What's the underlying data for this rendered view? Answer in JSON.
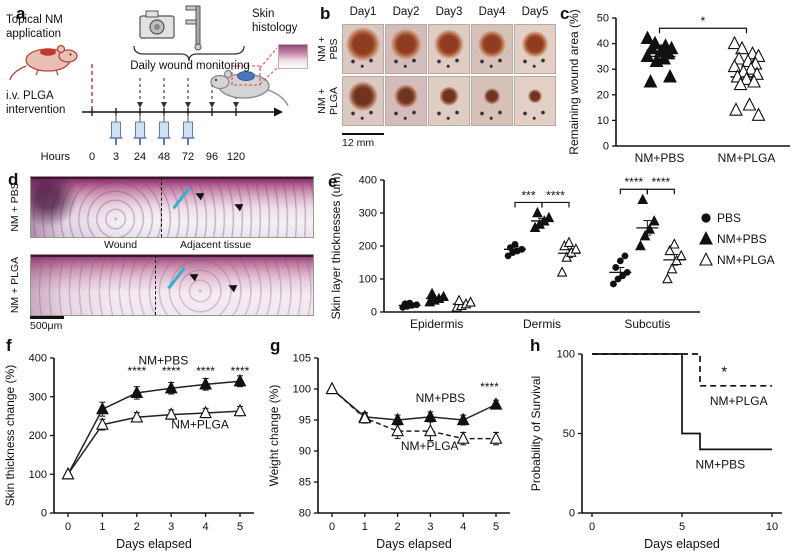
{
  "panels": {
    "a": {
      "label": "a"
    },
    "b": {
      "label": "b"
    },
    "c": {
      "label": "c"
    },
    "d": {
      "label": "d"
    },
    "e": {
      "label": "e"
    },
    "f": {
      "label": "f"
    },
    "g": {
      "label": "g"
    },
    "h": {
      "label": "h"
    }
  },
  "panel_a": {
    "topical_label": "Topical NM application",
    "iv_label": "i.v. PLGA intervention",
    "monitoring_label": "Daily wound monitoring",
    "histology_label": "Skin histology",
    "hours_label": "Hours",
    "hours": [
      "0",
      "3",
      "24",
      "48",
      "72",
      "96",
      "120"
    ]
  },
  "panel_b": {
    "day_labels": [
      "Day1",
      "Day2",
      "Day3",
      "Day4",
      "Day5"
    ],
    "rows": [
      {
        "label_lines": [
          "NM +",
          "PBS"
        ],
        "wound_sizes": [
          0.58,
          0.52,
          0.5,
          0.47,
          0.45
        ]
      },
      {
        "label_lines": [
          "NM +",
          "PLGA"
        ],
        "wound_sizes": [
          0.5,
          0.4,
          0.33,
          0.28,
          0.24
        ]
      }
    ],
    "scale_label": "12 mm"
  },
  "panel_d": {
    "row_labels": [
      "NM + PBS",
      "NM + PLGA"
    ],
    "wound_label": "Wound",
    "adjacent_label": "Adjacent tissue",
    "scale_label": "500μm"
  },
  "chart_data": [
    {
      "panel": "c",
      "type": "scatter",
      "ylabel": "Remaining wound area (%)",
      "ylim": [
        0,
        50
      ],
      "yticks": [
        0,
        10,
        20,
        30,
        40,
        50
      ],
      "categories": [
        "NM+PBS",
        "NM+PLGA"
      ],
      "groups": [
        {
          "name": "NM+PBS",
          "marker": "triangle-filled",
          "values": [
            42,
            40,
            39,
            38,
            38,
            37,
            36,
            35,
            34,
            33,
            27,
            25
          ],
          "mean": 35,
          "sem": 1.5
        },
        {
          "name": "NM+PLGA",
          "marker": "triangle-open",
          "values": [
            40,
            38,
            36,
            35,
            34,
            33,
            32,
            31,
            30,
            29,
            28,
            27,
            26,
            25,
            24,
            16,
            14,
            12
          ],
          "mean": 27,
          "sem": 2
        }
      ],
      "significance": [
        {
          "pair": [
            0,
            1
          ],
          "y": 46,
          "label": "*"
        }
      ]
    },
    {
      "panel": "e",
      "type": "grouped-scatter",
      "ylabel": "Skin layer thicknesses (um)",
      "ylim": [
        0,
        400
      ],
      "yticks": [
        0,
        100,
        200,
        300,
        400
      ],
      "categories": [
        "Epidermis",
        "Dermis",
        "Subcutis"
      ],
      "series": [
        {
          "name": "PBS",
          "marker": "circle-filled",
          "points": [
            [
              14,
              17,
              20,
              22,
              25,
              27
            ],
            [
              170,
              180,
              185,
              190,
              195,
              205
            ],
            [
              85,
              100,
              110,
              120,
              135,
              155,
              170
            ]
          ],
          "means": [
            20,
            190,
            120
          ],
          "sems": [
            3,
            8,
            15
          ]
        },
        {
          "name": "NM+PBS",
          "marker": "triangle-filled",
          "points": [
            [
              30,
              35,
              40,
              46,
              55
            ],
            [
              255,
              265,
              275,
              285,
              300
            ],
            [
              200,
              230,
              250,
              275,
              340
            ]
          ],
          "means": [
            41,
            276,
            255
          ],
          "sems": [
            4,
            8,
            22
          ]
        },
        {
          "name": "NM+PLGA",
          "marker": "triangle-open",
          "points": [
            [
              14,
              19,
              24,
              29,
              34
            ],
            [
              120,
              165,
              180,
              190,
              200,
              210
            ],
            [
              100,
              130,
              155,
              170,
              185,
              205
            ]
          ],
          "means": [
            24,
            178,
            158
          ],
          "sems": [
            4,
            13,
            16
          ]
        }
      ],
      "legend_position": "right",
      "significance": [
        {
          "cat": 1,
          "pair": [
            0,
            1
          ],
          "y": 332,
          "label": "***"
        },
        {
          "cat": 1,
          "pair": [
            1,
            2
          ],
          "y": 332,
          "label": "****"
        },
        {
          "cat": 2,
          "pair": [
            0,
            1
          ],
          "y": 372,
          "label": "****"
        },
        {
          "cat": 2,
          "pair": [
            1,
            2
          ],
          "y": 372,
          "label": "****"
        }
      ]
    },
    {
      "panel": "f",
      "type": "line",
      "xlabel": "Days elapsed",
      "ylabel": "Skin thickness change (%)",
      "ylim": [
        0,
        400
      ],
      "yticks": [
        0,
        100,
        200,
        300,
        400
      ],
      "xlim": [
        0,
        5
      ],
      "xticks": [
        0,
        1,
        2,
        3,
        4,
        5
      ],
      "x": [
        0,
        1,
        2,
        3,
        4,
        5
      ],
      "series": [
        {
          "name": "NM+PBS",
          "marker": "triangle-filled",
          "line": "solid",
          "values": [
            100,
            268,
            310,
            322,
            332,
            340
          ],
          "errors": [
            0,
            18,
            16,
            15,
            15,
            14
          ],
          "label_pos": [
            2.05,
            383
          ]
        },
        {
          "name": "NM+PLGA",
          "marker": "triangle-open",
          "line": "solid",
          "values": [
            100,
            228,
            247,
            254,
            258,
            263
          ],
          "errors": [
            0,
            14,
            12,
            12,
            12,
            12
          ],
          "label_pos": [
            3.0,
            218
          ]
        }
      ],
      "annotations": [
        {
          "x": 2,
          "y": 356,
          "label": "****"
        },
        {
          "x": 3,
          "y": 356,
          "label": "****"
        },
        {
          "x": 4,
          "y": 356,
          "label": "****"
        },
        {
          "x": 5,
          "y": 356,
          "label": "****"
        }
      ]
    },
    {
      "panel": "g",
      "type": "line",
      "xlabel": "Days elapsed",
      "ylabel": "Weight change (%)",
      "ylim": [
        80,
        105
      ],
      "yticks": [
        80,
        85,
        90,
        95,
        100,
        105
      ],
      "xlim": [
        0,
        5
      ],
      "xticks": [
        0,
        1,
        2,
        3,
        4,
        5
      ],
      "x": [
        0,
        1,
        2,
        3,
        4,
        5
      ],
      "series": [
        {
          "name": "NM+PBS",
          "marker": "triangle-filled",
          "line": "solid",
          "values": [
            100,
            95.5,
            95,
            95.5,
            95,
            97.5
          ],
          "errors": [
            0,
            0.7,
            0.8,
            0.8,
            0.8,
            0.7
          ],
          "label_pos": [
            2.55,
            97.9
          ]
        },
        {
          "name": "NM+PLGA",
          "marker": "triangle-open",
          "line": "dashed",
          "values": [
            100,
            95.3,
            93.2,
            93.2,
            92,
            92
          ],
          "errors": [
            0,
            0.8,
            1.2,
            1.5,
            1,
            1
          ],
          "label_pos": [
            2.1,
            90.2
          ]
        }
      ],
      "annotations": [
        {
          "x": 4.8,
          "y": 99.7,
          "label": "****"
        }
      ]
    },
    {
      "panel": "h",
      "type": "survival",
      "xlabel": "Days elapsed",
      "ylabel": "Probability of Survival",
      "ylim": [
        0,
        100
      ],
      "yticks": [
        0,
        50,
        100
      ],
      "xlim": [
        0,
        10
      ],
      "xticks": [
        0,
        5,
        10
      ],
      "series": [
        {
          "name": "NM+PLGA",
          "line": "dashed",
          "steps": [
            [
              0,
              100
            ],
            [
              6,
              100
            ],
            [
              6,
              80
            ],
            [
              10,
              80
            ]
          ],
          "label_pos": [
            6.55,
            68
          ]
        },
        {
          "name": "NM+PBS",
          "line": "solid",
          "steps": [
            [
              0,
              100
            ],
            [
              5,
              100
            ],
            [
              5,
              50
            ],
            [
              6,
              50
            ],
            [
              6,
              40
            ],
            [
              10,
              40
            ]
          ],
          "label_pos": [
            5.75,
            28
          ]
        }
      ],
      "annotations": [
        {
          "x": 7.35,
          "y": 86,
          "label": "*"
        }
      ]
    }
  ]
}
